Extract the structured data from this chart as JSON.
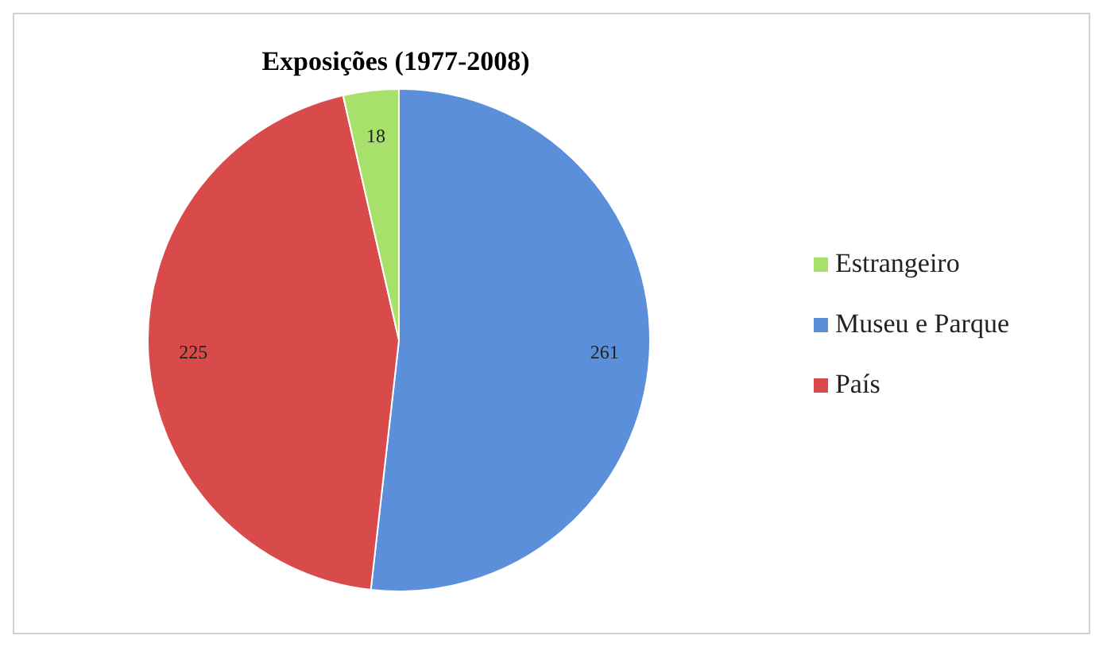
{
  "chart_data": {
    "type": "pie",
    "title": "Exposições (1977-2008)",
    "categories": [
      "Museu e Parque",
      "País",
      "Estrangeiro"
    ],
    "values": [
      261,
      225,
      18
    ],
    "colors": [
      "#5b8fd9",
      "#d94a4a",
      "#a8e06c"
    ],
    "data_labels": true,
    "legend": "right"
  }
}
